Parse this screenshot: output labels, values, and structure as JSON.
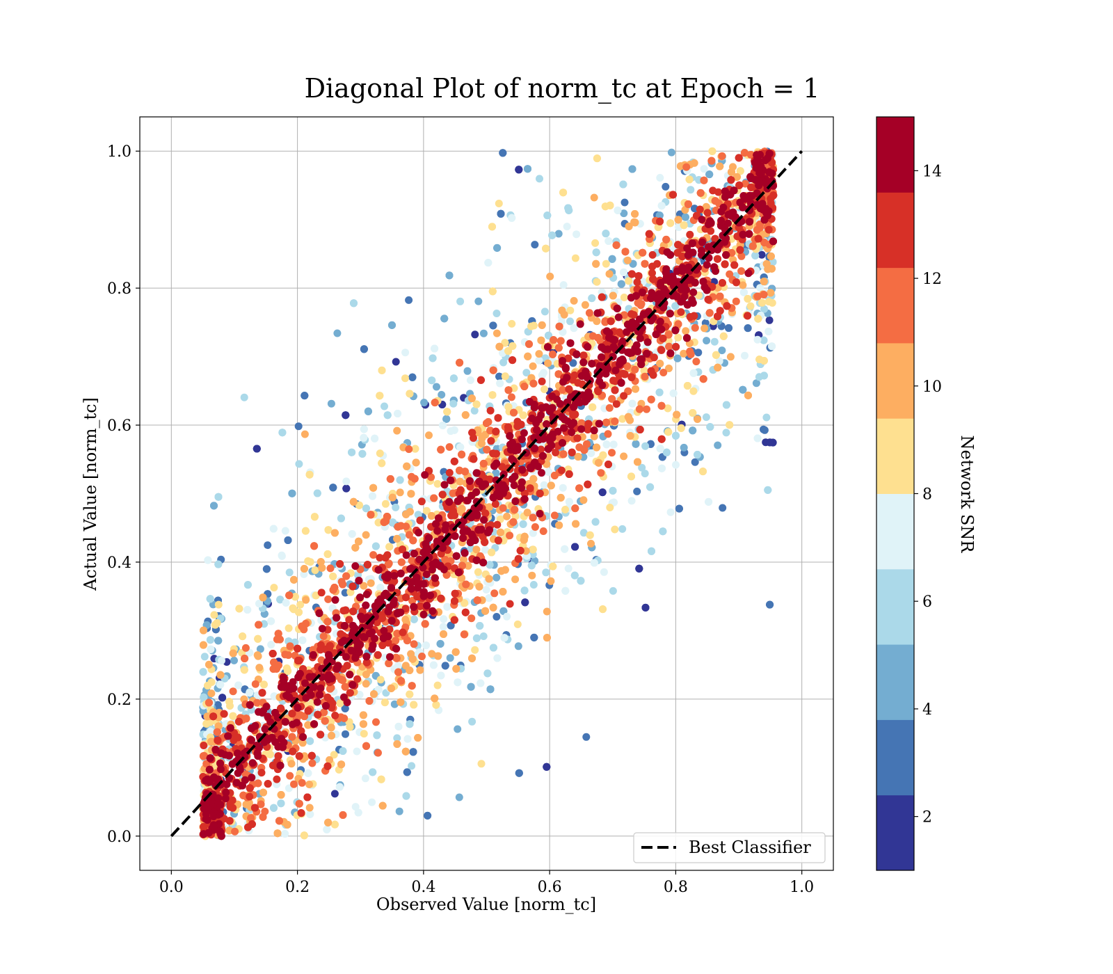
{
  "chart_data": {
    "type": "scatter",
    "title": "Diagonal Plot of norm_tc at Epoch = 1",
    "xlabel": "Observed Value [norm_tc]",
    "ylabel": "Actual Value [norm_tc]",
    "xlim": [
      -0.05,
      1.05
    ],
    "ylim": [
      -0.05,
      1.05
    ],
    "xticks": [
      0.0,
      0.2,
      0.4,
      0.6,
      0.8,
      1.0
    ],
    "yticks": [
      0.0,
      0.2,
      0.4,
      0.6,
      0.8,
      1.0
    ],
    "xtick_labels": [
      "0.0",
      "0.2",
      "0.4",
      "0.6",
      "0.8",
      "1.0"
    ],
    "ytick_labels": [
      "0.0",
      "0.2",
      "0.4",
      "0.6",
      "0.8",
      "1.0"
    ],
    "grid": true,
    "point_count": 9000,
    "distribution": "Dense band of points around the diagonal y = x spanning observed values about 0.05 to 0.95 and actual values 0 to 1; points near the diagonal have the highest SNR (dark red, ~14), points far from the diagonal have low SNR (blue, ~1-6).",
    "reference_line": {
      "label": "Best Classifier",
      "x": [
        0.0,
        1.0
      ],
      "y": [
        0.0,
        1.0
      ],
      "style": "dashed",
      "color": "#000000"
    },
    "legend": {
      "placement": "bottom-right",
      "entries": [
        "Best Classifier"
      ]
    },
    "colorbar": {
      "label": "Network SNR",
      "range": [
        1,
        15
      ],
      "ticks": [
        2,
        4,
        6,
        8,
        10,
        12,
        14
      ],
      "tick_labels": [
        "2",
        "4",
        "6",
        "8",
        "10",
        "12",
        "14"
      ],
      "bins": 10,
      "colormap": "RdYlBu_r",
      "colors": [
        "#313695",
        "#4575b4",
        "#74add1",
        "#abd9e9",
        "#e0f3f8",
        "#fee090",
        "#fdae61",
        "#f46d43",
        "#d73027",
        "#a50026"
      ]
    }
  }
}
